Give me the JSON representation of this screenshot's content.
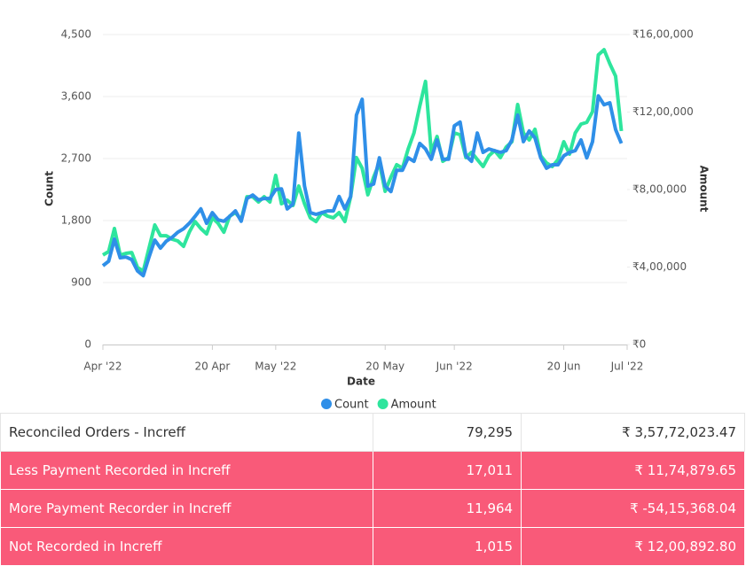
{
  "chart_data": {
    "type": "line",
    "x": [
      "2022-04-01",
      "2022-04-02",
      "2022-04-03",
      "2022-04-04",
      "2022-04-05",
      "2022-04-06",
      "2022-04-07",
      "2022-04-08",
      "2022-04-09",
      "2022-04-10",
      "2022-04-11",
      "2022-04-12",
      "2022-04-13",
      "2022-04-14",
      "2022-04-15",
      "2022-04-16",
      "2022-04-17",
      "2022-04-18",
      "2022-04-19",
      "2022-04-20",
      "2022-04-21",
      "2022-04-22",
      "2022-04-23",
      "2022-04-24",
      "2022-04-25",
      "2022-04-26",
      "2022-04-27",
      "2022-04-28",
      "2022-04-29",
      "2022-04-30",
      "2022-05-01",
      "2022-05-02",
      "2022-05-03",
      "2022-05-04",
      "2022-05-05",
      "2022-05-06",
      "2022-05-07",
      "2022-05-08",
      "2022-05-09",
      "2022-05-10",
      "2022-05-11",
      "2022-05-12",
      "2022-05-13",
      "2022-05-14",
      "2022-05-15",
      "2022-05-16",
      "2022-05-17",
      "2022-05-18",
      "2022-05-19",
      "2022-05-20",
      "2022-05-21",
      "2022-05-22",
      "2022-05-23",
      "2022-05-24",
      "2022-05-25",
      "2022-05-26",
      "2022-05-27",
      "2022-05-28",
      "2022-05-29",
      "2022-05-30",
      "2022-05-31",
      "2022-06-01",
      "2022-06-02",
      "2022-06-03",
      "2022-06-04",
      "2022-06-05",
      "2022-06-06",
      "2022-06-07",
      "2022-06-08",
      "2022-06-09",
      "2022-06-10",
      "2022-06-11",
      "2022-06-12",
      "2022-06-13",
      "2022-06-14",
      "2022-06-15",
      "2022-06-16",
      "2022-06-17",
      "2022-06-18",
      "2022-06-19",
      "2022-06-20",
      "2022-06-21",
      "2022-06-22",
      "2022-06-23",
      "2022-06-24",
      "2022-06-25",
      "2022-06-26",
      "2022-06-27",
      "2022-06-28",
      "2022-06-29",
      "2022-06-30"
    ],
    "series": [
      {
        "name": "Count",
        "color": "#2f8fe8",
        "values": [
          1144,
          1210,
          1530,
          1260,
          1270,
          1234,
          1070,
          1000,
          1270,
          1517,
          1400,
          1500,
          1555,
          1630,
          1680,
          1760,
          1860,
          1970,
          1760,
          1915,
          1810,
          1790,
          1860,
          1940,
          1790,
          2120,
          2170,
          2100,
          2120,
          2120,
          2250,
          2260,
          1970,
          2040,
          3070,
          2300,
          1915,
          1890,
          1915,
          1940,
          1940,
          2150,
          1970,
          2150,
          3330,
          3560,
          2300,
          2330,
          2710,
          2300,
          2220,
          2530,
          2530,
          2710,
          2660,
          2920,
          2840,
          2690,
          2970,
          2690,
          2690,
          3175,
          3230,
          2740,
          2660,
          3070,
          2790,
          2840,
          2815,
          2790,
          2815,
          2970,
          3330,
          2945,
          3100,
          3000,
          2710,
          2560,
          2610,
          2610,
          2740,
          2790,
          2815,
          2970,
          2710,
          2945,
          3610,
          3480,
          3510,
          3120,
          2920
        ]
      },
      {
        "name": "Amount",
        "color": "#2ee59d",
        "axis": "y2",
        "values": [
          462000,
          480000,
          599000,
          462000,
          471000,
          475000,
          398000,
          379000,
          498000,
          617000,
          562000,
          562000,
          544000,
          535000,
          507000,
          580000,
          635000,
          599000,
          571000,
          654000,
          626000,
          580000,
          663000,
          681000,
          644000,
          763000,
          763000,
          736000,
          763000,
          736000,
          873000,
          727000,
          745000,
          718000,
          818000,
          727000,
          654000,
          635000,
          681000,
          663000,
          654000,
          681000,
          635000,
          763000,
          965000,
          910000,
          773000,
          864000,
          937000,
          791000,
          864000,
          928000,
          910000,
          1010000,
          1092000,
          1230000,
          1358000,
          992000,
          1074000,
          946000,
          965000,
          1092000,
          1083000,
          965000,
          992000,
          955000,
          919000,
          974000,
          1001000,
          965000,
          1019000,
          1047000,
          1239000,
          1092000,
          1056000,
          1111000,
          974000,
          937000,
          919000,
          955000,
          1047000,
          983000,
          1092000,
          1138000,
          1147000,
          1202000,
          1495000,
          1522000,
          1449000,
          1385000,
          1102000
        ]
      }
    ],
    "xlabel": "Date",
    "ylabel": "Count",
    "y2label": "Amount",
    "xlim": [
      "2022-04-01",
      "2022-07-01"
    ],
    "xticks": [
      {
        "value": "2022-04-01",
        "label": "Apr '22"
      },
      {
        "value": "2022-04-20",
        "label": "20 Apr"
      },
      {
        "value": "2022-05-01",
        "label": "May '22"
      },
      {
        "value": "2022-05-20",
        "label": "20 May"
      },
      {
        "value": "2022-06-01",
        "label": "Jun '22"
      },
      {
        "value": "2022-06-20",
        "label": "20 Jun"
      },
      {
        "value": "2022-07-01",
        "label": "Jul '22"
      }
    ],
    "ylim": [
      0,
      4500
    ],
    "yticks": [
      0,
      900,
      {
        "value": 1800,
        "label": "1,800"
      },
      {
        "value": 2700,
        "label": "2,700"
      },
      {
        "value": 3600,
        "label": "3,600"
      },
      {
        "value": 4500,
        "label": "4,500"
      }
    ],
    "y2lim": [
      0,
      1600000
    ],
    "y2ticks": [
      {
        "value": 0,
        "label": "₹0"
      },
      {
        "value": 400000,
        "label": "₹4,00,000"
      },
      {
        "value": 800000,
        "label": "₹8,00,000"
      },
      {
        "value": 1200000,
        "label": "₹12,00,000"
      },
      {
        "value": 1600000,
        "label": "₹16,00,000"
      }
    ],
    "grid": true,
    "legend": "bottom"
  },
  "table": {
    "rows": [
      [
        "Reconciled Orders - Increff",
        "79,295",
        "₹ 3,57,72,023.47"
      ],
      [
        "Less Payment Recorded in Increff",
        "17,011",
        "₹ 11,74,879.65"
      ],
      [
        "More Payment Recorder in Increff",
        "11,964",
        "₹ -54,15,368.04"
      ],
      [
        "Not Recorded in Increff",
        "1,015",
        "₹ 12,00,892.80"
      ]
    ]
  }
}
